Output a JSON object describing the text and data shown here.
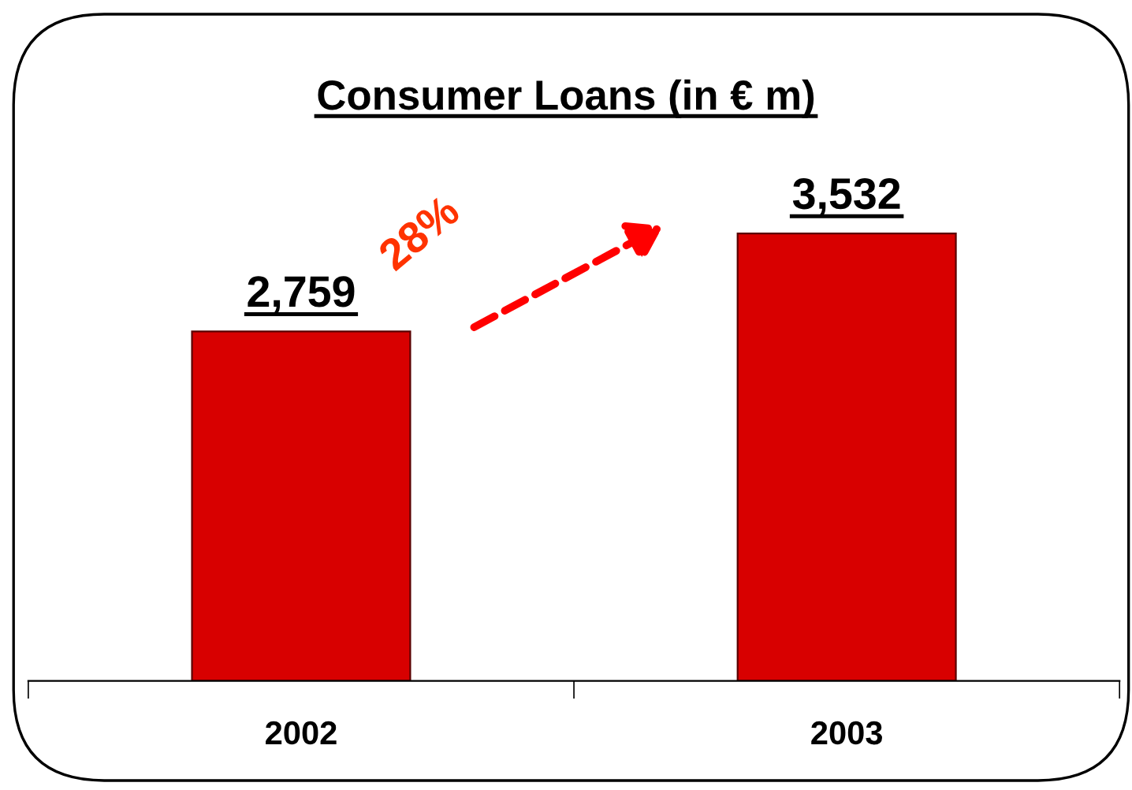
{
  "chart_data": {
    "type": "bar",
    "title": "Consumer Loans (in € m)",
    "categories": [
      "2002",
      "2003"
    ],
    "values": [
      2759,
      3532
    ],
    "color": "#d80000",
    "value_labels": [
      "2,759",
      "3,532"
    ],
    "annotations": [
      "28%"
    ],
    "grid": false,
    "legend": false
  }
}
